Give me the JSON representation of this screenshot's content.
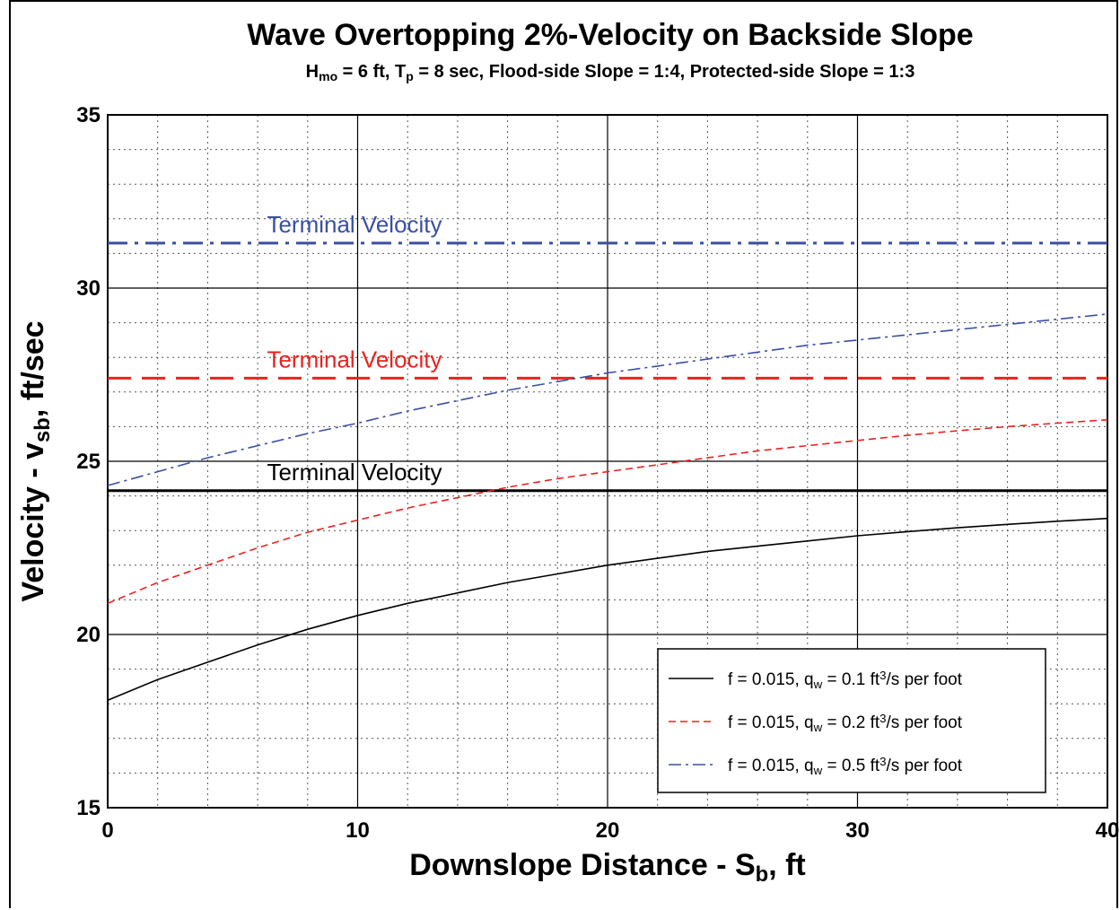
{
  "chart_data": {
    "type": "line",
    "title": "Wave Overtopping 2%-Velocity on Backside Slope",
    "subtitle": {
      "parts": [
        {
          "t": "H"
        },
        {
          "t": "mo",
          "sub": true
        },
        {
          "t": " = 6 ft, T"
        },
        {
          "t": "p",
          "sub": true
        },
        {
          "t": " = 8 sec, Flood-side Slope = 1:4, Protected-side Slope = 1:3"
        }
      ]
    },
    "xlabel": {
      "parts": [
        {
          "t": "Downslope Distance - S"
        },
        {
          "t": "b",
          "sub": true
        },
        {
          "t": ", ft"
        }
      ]
    },
    "ylabel": {
      "parts": [
        {
          "t": "Velocity - v"
        },
        {
          "t": "sb",
          "sub": true
        },
        {
          "t": ", ft/sec"
        }
      ]
    },
    "xlim": [
      0,
      40
    ],
    "ylim": [
      15,
      35
    ],
    "x_ticks": [
      0,
      10,
      20,
      30,
      40
    ],
    "y_ticks": [
      15,
      20,
      25,
      30,
      35
    ],
    "grid": true,
    "legend_position": "lower-right",
    "series": [
      {
        "style": "solid",
        "color": "#000000",
        "legend": {
          "parts": [
            {
              "t": "f = 0.015,  q"
            },
            {
              "t": "w",
              "sub": true
            },
            {
              "t": " = 0.1 ft"
            },
            {
              "t": "3",
              "sup": true
            },
            {
              "t": "/s per foot"
            }
          ]
        },
        "x": [
          0,
          2,
          4,
          6,
          8,
          10,
          12,
          14,
          16,
          18,
          20,
          22,
          24,
          26,
          28,
          30,
          32,
          34,
          36,
          38,
          40
        ],
        "y": [
          18.1,
          18.7,
          19.2,
          19.7,
          20.15,
          20.55,
          20.9,
          21.2,
          21.5,
          21.75,
          22.0,
          22.2,
          22.4,
          22.55,
          22.7,
          22.85,
          22.97,
          23.08,
          23.18,
          23.27,
          23.35
        ]
      },
      {
        "style": "dashed",
        "color": "#e8231f",
        "legend": {
          "parts": [
            {
              "t": "f = 0.015,  q"
            },
            {
              "t": "w",
              "sub": true
            },
            {
              "t": " = 0.2 ft"
            },
            {
              "t": "3",
              "sup": true
            },
            {
              "t": "/s per foot"
            }
          ]
        },
        "x": [
          0,
          2,
          4,
          6,
          8,
          10,
          12,
          14,
          16,
          18,
          20,
          22,
          24,
          26,
          28,
          30,
          32,
          34,
          36,
          38,
          40
        ],
        "y": [
          20.9,
          21.5,
          22.0,
          22.5,
          22.95,
          23.3,
          23.65,
          23.95,
          24.25,
          24.5,
          24.7,
          24.9,
          25.1,
          25.3,
          25.45,
          25.6,
          25.75,
          25.88,
          26.0,
          26.1,
          26.2
        ]
      },
      {
        "style": "dashdot",
        "color": "#3a4fa3",
        "legend": {
          "parts": [
            {
              "t": "f = 0.015,  q"
            },
            {
              "t": "w",
              "sub": true
            },
            {
              "t": " = 0.5 ft"
            },
            {
              "t": "3",
              "sup": true
            },
            {
              "t": "/s per foot"
            }
          ]
        },
        "x": [
          0,
          2,
          4,
          6,
          8,
          10,
          12,
          14,
          16,
          18,
          20,
          22,
          24,
          26,
          28,
          30,
          32,
          34,
          36,
          38,
          40
        ],
        "y": [
          24.3,
          24.7,
          25.1,
          25.45,
          25.8,
          26.1,
          26.45,
          26.75,
          27.05,
          27.3,
          27.55,
          27.75,
          27.95,
          28.15,
          28.35,
          28.5,
          28.65,
          28.8,
          28.95,
          29.1,
          29.25
        ]
      }
    ],
    "terminal_lines": [
      {
        "y": 24.15,
        "style": "solid",
        "color": "#000000",
        "label": "Terminal Velocity"
      },
      {
        "y": 27.4,
        "style": "longdash",
        "color": "#e8231f",
        "label": "Terminal Velocity"
      },
      {
        "y": 31.3,
        "style": "dashdot",
        "color": "#3a4fa3",
        "label": "Terminal Velocity"
      }
    ]
  }
}
